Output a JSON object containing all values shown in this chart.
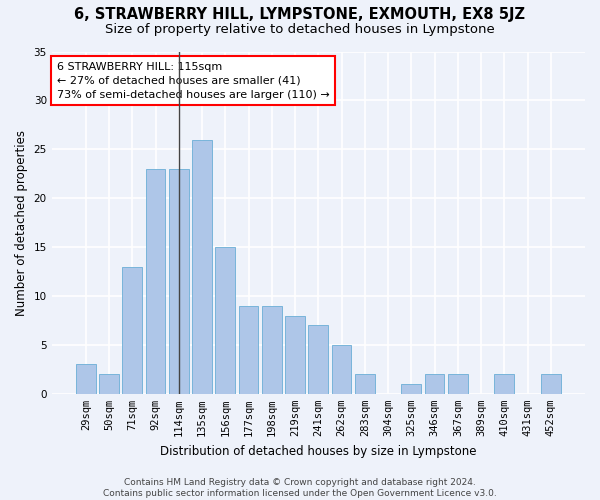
{
  "title": "6, STRAWBERRY HILL, LYMPSTONE, EXMOUTH, EX8 5JZ",
  "subtitle": "Size of property relative to detached houses in Lympstone",
  "xlabel": "Distribution of detached houses by size in Lympstone",
  "ylabel": "Number of detached properties",
  "categories": [
    "29sqm",
    "50sqm",
    "71sqm",
    "92sqm",
    "114sqm",
    "135sqm",
    "156sqm",
    "177sqm",
    "198sqm",
    "219sqm",
    "241sqm",
    "262sqm",
    "283sqm",
    "304sqm",
    "325sqm",
    "346sqm",
    "367sqm",
    "389sqm",
    "410sqm",
    "431sqm",
    "452sqm"
  ],
  "values": [
    3,
    2,
    13,
    23,
    23,
    26,
    15,
    9,
    9,
    8,
    7,
    5,
    2,
    0,
    1,
    2,
    2,
    0,
    2,
    0,
    2
  ],
  "bar_color": "#aec6e8",
  "bar_edge_color": "#6aaed6",
  "highlight_bar_index": 4,
  "highlight_line_color": "#444444",
  "annotation_text": "6 STRAWBERRY HILL: 115sqm\n← 27% of detached houses are smaller (41)\n73% of semi-detached houses are larger (110) →",
  "annotation_box_color": "white",
  "annotation_box_edge_color": "red",
  "footer_text": "Contains HM Land Registry data © Crown copyright and database right 2024.\nContains public sector information licensed under the Open Government Licence v3.0.",
  "ylim": [
    0,
    35
  ],
  "yticks": [
    0,
    5,
    10,
    15,
    20,
    25,
    30,
    35
  ],
  "background_color": "#eef2fa",
  "grid_color": "white",
  "title_fontsize": 10.5,
  "subtitle_fontsize": 9.5,
  "axis_label_fontsize": 8.5,
  "tick_fontsize": 7.5,
  "annotation_fontsize": 8,
  "footer_fontsize": 6.5
}
